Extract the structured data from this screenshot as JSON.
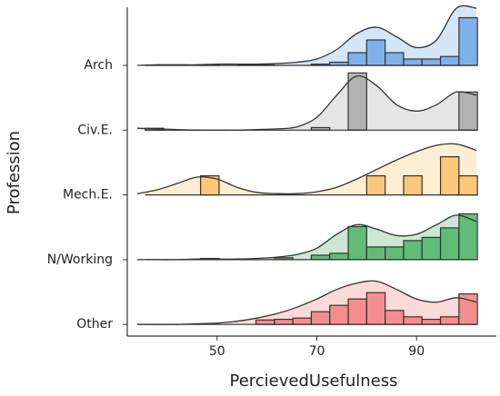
{
  "chart_data": {
    "type": "ridgeline",
    "xlabel": "PercievedUsefulness",
    "ylabel": "Profession",
    "xlim": [
      32,
      106
    ],
    "xticks": [
      50,
      70,
      90
    ],
    "bins": [
      35.6,
      39.3,
      43,
      46.7,
      50.4,
      54.1,
      57.8,
      61.5,
      65.2,
      68.9,
      72.6,
      76.3,
      80,
      83.7,
      87.4,
      91.1,
      94.8,
      98.5,
      102.2
    ],
    "density_x": [
      34,
      38,
      42,
      46,
      50,
      54,
      58,
      62,
      66,
      70,
      74,
      78,
      82,
      86,
      90,
      94,
      98,
      102
    ],
    "series": [
      {
        "name": "Arch",
        "color": "#6fa8e8",
        "counts": [
          0,
          0,
          0,
          0.01,
          0,
          0.01,
          0.01,
          0,
          0,
          0.02,
          0.05,
          0.2,
          0.4,
          0.2,
          0.1,
          0.1,
          0.14,
          0.75
        ],
        "density": [
          0,
          0.01,
          0.01,
          0.01,
          0.02,
          0.02,
          0.02,
          0.03,
          0.05,
          0.1,
          0.25,
          0.5,
          0.6,
          0.45,
          0.28,
          0.4,
          0.9,
          0.9
        ]
      },
      {
        "name": "Civ.E.",
        "color": "#a9a9a9",
        "counts": [
          0.03,
          0,
          0,
          0,
          0,
          0,
          0,
          0,
          0,
          0.04,
          0,
          0.9,
          0,
          0,
          0,
          0,
          0,
          0.6
        ],
        "density": [
          0.03,
          0.02,
          0.01,
          0,
          0,
          0,
          0.01,
          0.02,
          0.05,
          0.2,
          0.55,
          0.85,
          0.7,
          0.4,
          0.3,
          0.4,
          0.6,
          0.55
        ]
      },
      {
        "name": "Mech.E.",
        "color": "#f8c26a",
        "counts": [
          0,
          0,
          0,
          0.3,
          0,
          0,
          0,
          0,
          0,
          0,
          0,
          0,
          0.3,
          0,
          0.3,
          0,
          0.6,
          0.3
        ],
        "density": [
          0.02,
          0.08,
          0.18,
          0.28,
          0.25,
          0.12,
          0.04,
          0.02,
          0.02,
          0.05,
          0.12,
          0.25,
          0.4,
          0.55,
          0.68,
          0.78,
          0.8,
          0.7
        ]
      },
      {
        "name": "N/Working",
        "color": "#4fb46a",
        "counts": [
          0,
          0,
          0,
          0.02,
          0,
          0,
          0,
          0.03,
          0,
          0.07,
          0.1,
          0.52,
          0.2,
          0.2,
          0.3,
          0.35,
          0.5,
          0.72
        ],
        "density": [
          0,
          0,
          0,
          0.01,
          0.01,
          0.01,
          0.02,
          0.04,
          0.08,
          0.18,
          0.4,
          0.55,
          0.48,
          0.38,
          0.4,
          0.55,
          0.7,
          0.6
        ]
      },
      {
        "name": "Other",
        "color": "#f28080",
        "counts": [
          0,
          0,
          0,
          0,
          0,
          0,
          0.07,
          0.08,
          0.1,
          0.2,
          0.3,
          0.4,
          0.5,
          0.22,
          0.12,
          0.08,
          0.12,
          0.48
        ],
        "density": [
          0,
          0,
          0,
          0.01,
          0.02,
          0.05,
          0.1,
          0.17,
          0.27,
          0.4,
          0.55,
          0.65,
          0.68,
          0.55,
          0.4,
          0.35,
          0.42,
          0.35
        ]
      }
    ]
  }
}
